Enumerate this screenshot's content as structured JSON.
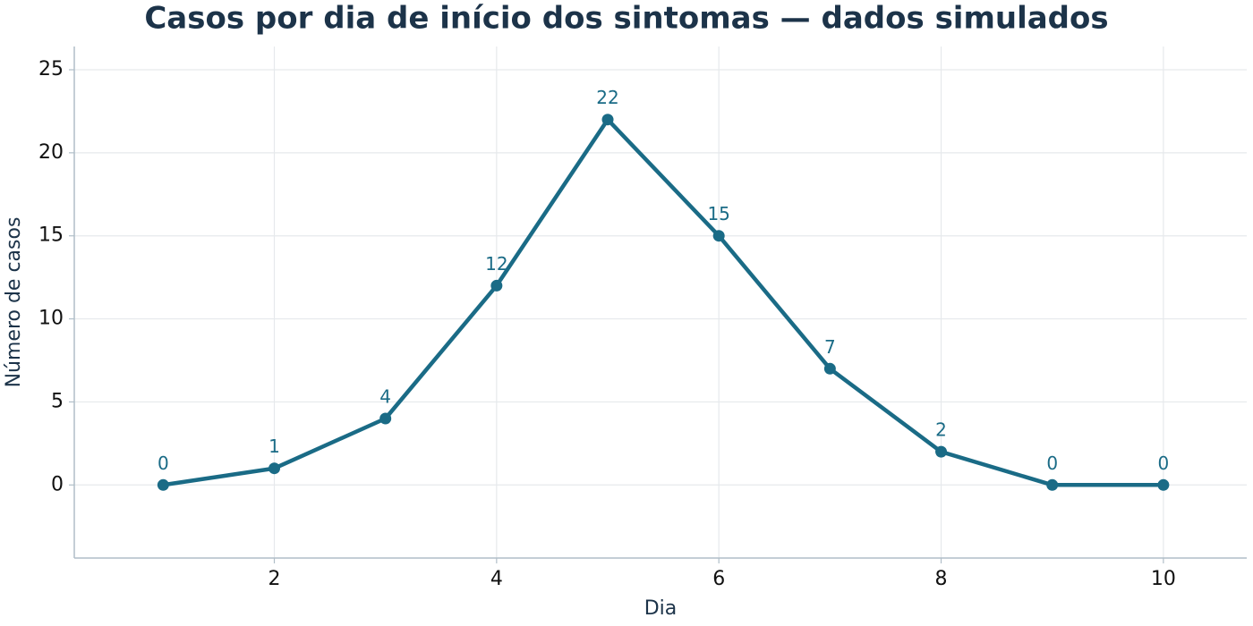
{
  "chart_data": {
    "type": "line",
    "title": "Casos por dia de início dos sintomas — dados simulados",
    "x_label": "Dia",
    "y_label": "Número de casos",
    "x": [
      1,
      2,
      3,
      4,
      5,
      6,
      7,
      8,
      9,
      10
    ],
    "values": [
      0,
      1,
      4,
      12,
      22,
      15,
      7,
      2,
      0,
      0
    ],
    "color": "#1a6b86",
    "xlim": [
      0.2,
      10.75
    ],
    "xticks": [
      2,
      4,
      6,
      8,
      10
    ],
    "ylim": [
      -4.4,
      26.4
    ],
    "yticks": [
      0,
      5,
      10,
      15,
      20,
      25
    ],
    "grid": true
  }
}
